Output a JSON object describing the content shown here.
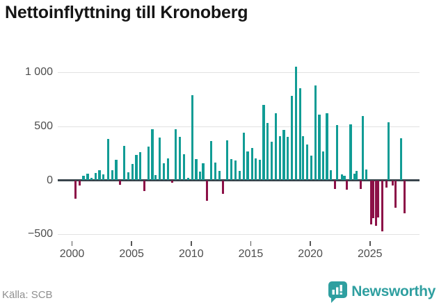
{
  "title": "Nettoinflyttning till Kronoberg",
  "source": "Källa: SCB",
  "brand": {
    "name": "Newsworthy"
  },
  "chart_data": {
    "type": "bar",
    "title": "Nettoinflyttning till Kronoberg",
    "xlabel": "",
    "ylabel": "",
    "grid": "horizontal",
    "legend": "none",
    "xlim": [
      1998.8,
      2029.2
    ],
    "ylim": [
      -650,
      1120
    ],
    "x_ticks": [
      2000,
      2005,
      2010,
      2015,
      2020,
      2025
    ],
    "y_ticks": [
      {
        "v": 1000,
        "label": "1 000"
      },
      {
        "v": 500,
        "label": "500"
      },
      {
        "v": 0,
        "label": "0"
      },
      {
        "v": -500,
        "label": "−500"
      }
    ],
    "colors": {
      "positive": "#119c95",
      "negative": "#8c1047",
      "grid": "#e2e2e2",
      "zero_line": "#39444c",
      "tick_text": "#4d4d4d",
      "brand_teal": "#2f9fa0"
    },
    "points": [
      [
        2000.29,
        -170
      ],
      [
        2000.63,
        -45
      ],
      [
        2000.96,
        42
      ],
      [
        2001.31,
        60
      ],
      [
        2001.63,
        25
      ],
      [
        2001.98,
        65
      ],
      [
        2002.31,
        95
      ],
      [
        2002.63,
        55
      ],
      [
        2003.04,
        380
      ],
      [
        2003.39,
        90
      ],
      [
        2003.71,
        190
      ],
      [
        2004.05,
        -38
      ],
      [
        2004.38,
        320
      ],
      [
        2004.72,
        75
      ],
      [
        2005.06,
        148
      ],
      [
        2005.4,
        232
      ],
      [
        2005.74,
        258
      ],
      [
        2006.08,
        -95
      ],
      [
        2006.42,
        312
      ],
      [
        2006.74,
        475
      ],
      [
        2007.02,
        46
      ],
      [
        2007.36,
        395
      ],
      [
        2007.71,
        158
      ],
      [
        2008.04,
        200
      ],
      [
        2008.39,
        -17
      ],
      [
        2008.72,
        475
      ],
      [
        2009.05,
        400
      ],
      [
        2009.4,
        242
      ],
      [
        2009.74,
        25
      ],
      [
        2010.08,
        790
      ],
      [
        2010.42,
        194
      ],
      [
        2010.75,
        82
      ],
      [
        2011.0,
        158
      ],
      [
        2011.33,
        -186
      ],
      [
        2011.68,
        360
      ],
      [
        2012.01,
        165
      ],
      [
        2012.36,
        85
      ],
      [
        2012.69,
        -120
      ],
      [
        2013.03,
        370
      ],
      [
        2013.37,
        194
      ],
      [
        2013.72,
        180
      ],
      [
        2014.06,
        89
      ],
      [
        2014.4,
        440
      ],
      [
        2014.74,
        268
      ],
      [
        2015.11,
        300
      ],
      [
        2015.42,
        204
      ],
      [
        2015.75,
        190
      ],
      [
        2016.08,
        700
      ],
      [
        2016.42,
        532
      ],
      [
        2016.76,
        359
      ],
      [
        2017.1,
        618
      ],
      [
        2017.44,
        411
      ],
      [
        2017.78,
        464
      ],
      [
        2018.12,
        401
      ],
      [
        2018.46,
        780
      ],
      [
        2018.8,
        1049
      ],
      [
        2019.13,
        850
      ],
      [
        2019.4,
        411
      ],
      [
        2019.74,
        331
      ],
      [
        2020.08,
        226
      ],
      [
        2020.42,
        880
      ],
      [
        2020.75,
        606
      ],
      [
        2021.09,
        268
      ],
      [
        2021.4,
        620
      ],
      [
        2021.71,
        90
      ],
      [
        2022.05,
        -75
      ],
      [
        2022.26,
        511
      ],
      [
        2022.66,
        53
      ],
      [
        2022.85,
        40
      ],
      [
        2023.07,
        -84
      ],
      [
        2023.38,
        519
      ],
      [
        2023.68,
        60
      ],
      [
        2023.88,
        85
      ],
      [
        2024.21,
        -80
      ],
      [
        2024.42,
        595
      ],
      [
        2024.68,
        100
      ],
      [
        2025.08,
        -407
      ],
      [
        2025.29,
        -345
      ],
      [
        2025.5,
        -420
      ],
      [
        2025.68,
        -340
      ],
      [
        2026.04,
        -470
      ],
      [
        2026.37,
        -63
      ],
      [
        2026.58,
        538
      ],
      [
        2026.91,
        -44
      ],
      [
        2027.15,
        -250
      ],
      [
        2027.61,
        390
      ],
      [
        2027.9,
        -300
      ]
    ]
  }
}
